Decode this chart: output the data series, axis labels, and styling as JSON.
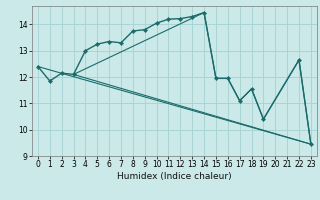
{
  "xlabel": "Humidex (Indice chaleur)",
  "background_color": "#cce9e9",
  "grid_color": "#aad4d4",
  "line_color": "#1a6b6b",
  "xlim": [
    -0.5,
    23.5
  ],
  "ylim": [
    9,
    14.7
  ],
  "yticks": [
    9,
    10,
    11,
    12,
    13,
    14
  ],
  "xticks": [
    0,
    1,
    2,
    3,
    4,
    5,
    6,
    7,
    8,
    9,
    10,
    11,
    12,
    13,
    14,
    15,
    16,
    17,
    18,
    19,
    20,
    21,
    22,
    23
  ],
  "series1_x": [
    0,
    1,
    2,
    3,
    4,
    5,
    6,
    7,
    8,
    9,
    10,
    11,
    12,
    13,
    14,
    15,
    16,
    17,
    18,
    19,
    22,
    23
  ],
  "series1_y": [
    12.4,
    11.85,
    12.15,
    12.1,
    13.0,
    13.25,
    13.35,
    13.3,
    13.75,
    13.8,
    14.05,
    14.2,
    14.22,
    14.3,
    14.45,
    11.95,
    11.95,
    11.1,
    11.55,
    10.4,
    12.65,
    9.45
  ],
  "line2_x": [
    0,
    23
  ],
  "line2_y": [
    12.4,
    9.45
  ],
  "line3_x": [
    3,
    14,
    15,
    16,
    17,
    18,
    19,
    22,
    23
  ],
  "line3_y": [
    12.1,
    14.45,
    11.95,
    11.95,
    11.1,
    11.55,
    10.4,
    12.65,
    9.45
  ],
  "line4_x": [
    3,
    23
  ],
  "line4_y": [
    12.1,
    9.45
  ]
}
